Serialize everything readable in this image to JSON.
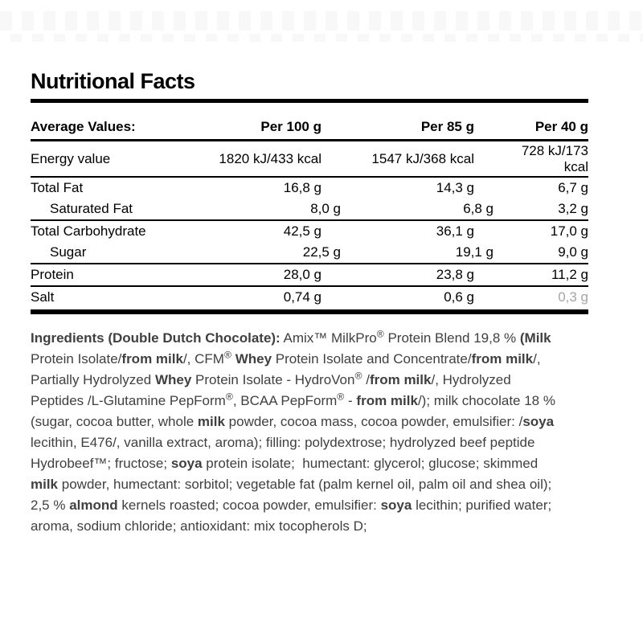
{
  "title": "Nutritional Facts",
  "colors": {
    "text": "#000000",
    "ingredients_text": "#404040",
    "muted_value": "#a6a6a6",
    "rule": "#000000"
  },
  "table": {
    "header": {
      "label": "Average Values:",
      "cols": [
        "Per 100 g",
        "Per  85 g",
        "Per 40 g"
      ]
    },
    "rows": [
      {
        "label": "Energy value",
        "indent": false,
        "tall": true,
        "border": "thin",
        "values": [
          "1820 kJ/433 kcal",
          "1547 kJ/368 kcal",
          "728 kJ/173\nkcal"
        ]
      },
      {
        "label": "Total Fat",
        "indent": false,
        "border": "none",
        "values": [
          "16,8 g",
          "14,3 g",
          "6,7 g"
        ]
      },
      {
        "label": "Saturated Fat",
        "indent": true,
        "border": "thin",
        "values": [
          "8,0 g",
          "6,8 g",
          "3,2 g"
        ]
      },
      {
        "label": "Total Carbohydrate",
        "indent": false,
        "border": "none",
        "values": [
          "42,5 g",
          "36,1 g",
          "17,0 g"
        ]
      },
      {
        "label": "Sugar",
        "indent": true,
        "border": "thin",
        "values": [
          "22,5 g",
          "19,1 g",
          "9,0 g"
        ]
      },
      {
        "label": "Protein",
        "indent": false,
        "border": "thin",
        "values": [
          "28,0 g",
          "23,8 g",
          "11,2 g"
        ]
      },
      {
        "label": "Salt",
        "indent": false,
        "border": "none",
        "muted_last": true,
        "values": [
          "0,74 g",
          "0,6 g",
          "0,3 g"
        ]
      }
    ]
  },
  "ingredients": {
    "lines": [
      [
        {
          "t": "Ingredients (Double Dutch Chocolate):",
          "b": true
        },
        {
          "t": " Amix™ MilkPro"
        },
        {
          "t": "®",
          "s": true
        },
        {
          "t": " Protein Blend 19,8 % "
        },
        {
          "t": "(Milk",
          "b": true
        }
      ],
      [
        {
          "t": "Protein Isolate/"
        },
        {
          "t": "from milk",
          "b": true
        },
        {
          "t": "/, CFM"
        },
        {
          "t": "®",
          "s": true
        },
        {
          "t": " "
        },
        {
          "t": "Whey",
          "b": true
        },
        {
          "t": " Protein Isolate and Concentrate/"
        },
        {
          "t": "from milk",
          "b": true
        },
        {
          "t": "/,"
        }
      ],
      [
        {
          "t": "Partially Hydrolyzed "
        },
        {
          "t": "Whey",
          "b": true
        },
        {
          "t": " Protein Isolate - HydroVon"
        },
        {
          "t": "®",
          "s": true
        },
        {
          "t": " /"
        },
        {
          "t": "from milk",
          "b": true
        },
        {
          "t": "/, Hydrolyzed"
        }
      ],
      [
        {
          "t": "Peptides /L-Glutamine PepForm"
        },
        {
          "t": "®",
          "s": true
        },
        {
          "t": ", BCAA PepForm"
        },
        {
          "t": "®",
          "s": true
        },
        {
          "t": " - "
        },
        {
          "t": "from milk",
          "b": true
        },
        {
          "t": "/); milk chocolate 18 %"
        }
      ],
      [
        {
          "t": "(sugar, cocoa butter, whole "
        },
        {
          "t": "milk",
          "b": true
        },
        {
          "t": " powder, cocoa mass, cocoa powder, emulsifier: /"
        },
        {
          "t": "soya",
          "b": true
        }
      ],
      [
        {
          "t": "lecithin, E476/, vanilla extract, aroma); filling: polydextrose; hydrolyzed beef peptide"
        }
      ],
      [
        {
          "t": "Hydrobeef™; fructose; "
        },
        {
          "t": "soya",
          "b": true
        },
        {
          "t": " protein isolate;  humectant: glycerol; glucose; skimmed"
        }
      ],
      [
        {
          "t": "milk",
          "b": true
        },
        {
          "t": " powder, humectant: sorbitol; vegetable fat (palm kernel oil, palm oil and shea oil);"
        }
      ],
      [
        {
          "t": "2,5 % "
        },
        {
          "t": "almond",
          "b": true
        },
        {
          "t": " kernels roasted; cocoa powder, emulsifier: "
        },
        {
          "t": "soya",
          "b": true
        },
        {
          "t": " lecithin; purified water;"
        }
      ],
      [
        {
          "t": "aroma, sodium chloride; antioxidant: mix tocopherols D;"
        }
      ]
    ]
  }
}
